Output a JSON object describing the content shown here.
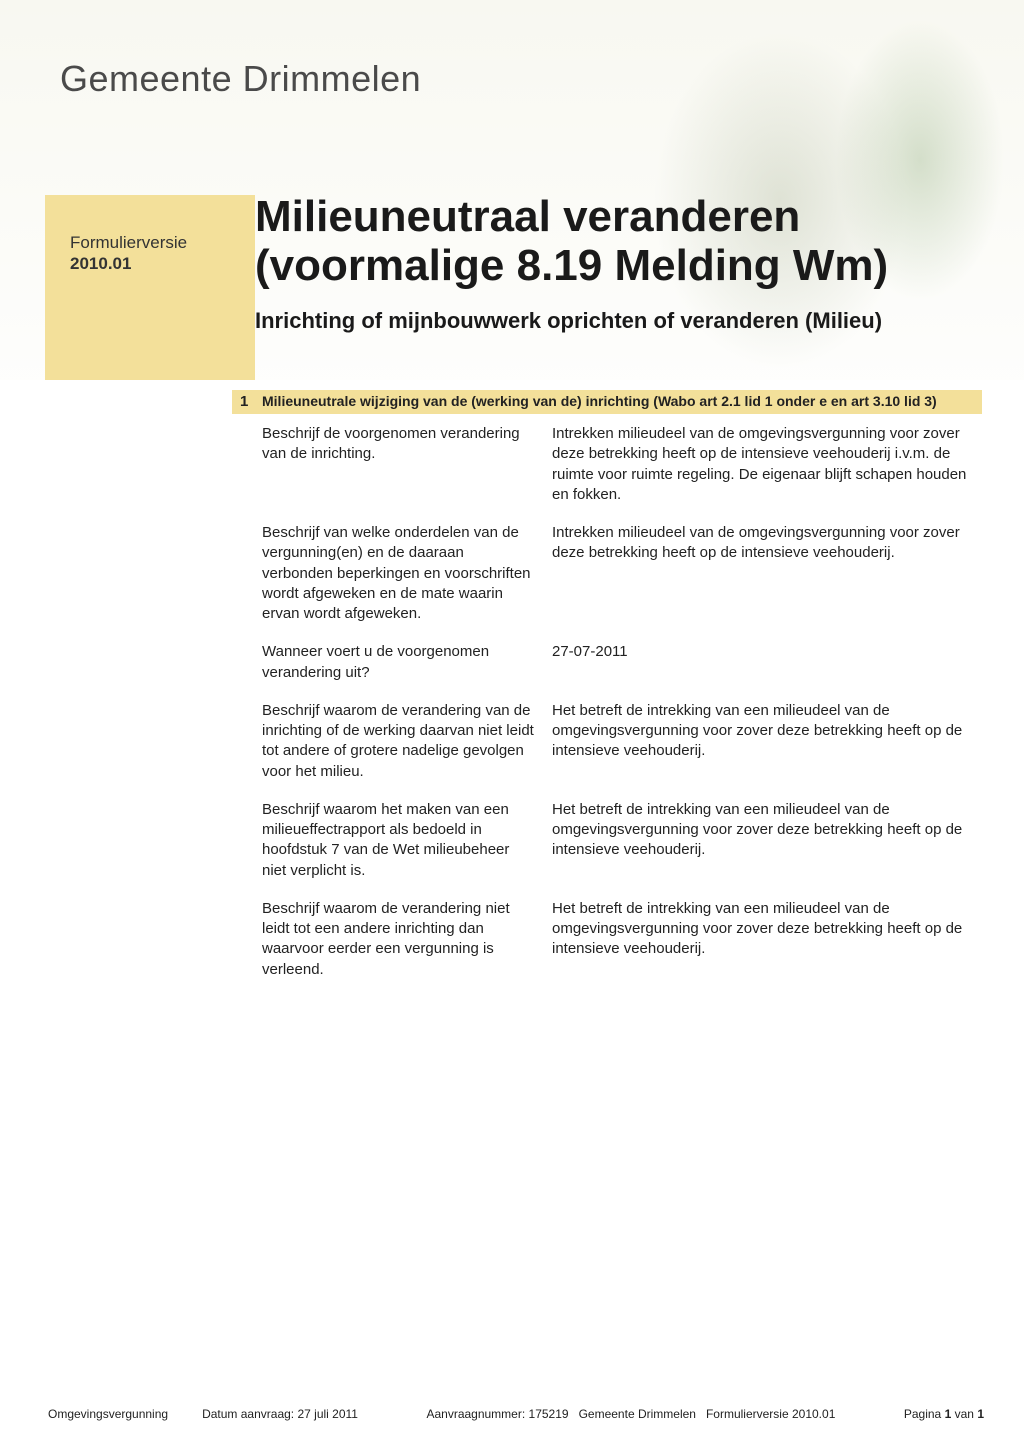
{
  "colors": {
    "accent_yellow": "#f3e09a",
    "text_primary": "#1a1a1a",
    "text_body": "#222222",
    "org_gray": "#4a4a4a",
    "background": "#ffffff"
  },
  "typography": {
    "org_name_fontsize": 36,
    "org_name_weight": 300,
    "main_title_fontsize": 44,
    "main_title_weight": "bold",
    "subtitle_fontsize": 22,
    "subtitle_weight": "bold",
    "body_fontsize": 15,
    "section_title_fontsize": 14,
    "footer_fontsize": 12
  },
  "header": {
    "org_name": "Gemeente Drimmelen"
  },
  "sidebar": {
    "label_line1": "Formulierversie",
    "label_line2": "2010.01"
  },
  "title": {
    "main": "Milieuneutraal veranderen (voormalige 8.19 Melding Wm)",
    "sub": "Inrichting of mijnbouwwerk oprichten of veranderen (Milieu)"
  },
  "section": {
    "number": "1",
    "title": "Milieuneutrale wijziging van de (werking van de) inrichting (Wabo art 2.1 lid 1 onder e en art 3.10 lid 3)"
  },
  "qa": [
    {
      "q": "Beschrijf de voorgenomen verandering van de inrichting.",
      "a": "Intrekken milieudeel van de omgevingsvergunning voor zover deze betrekking heeft op de intensieve veehouderij i.v.m. de ruimte voor ruimte regeling. De eigenaar blijft schapen houden en fokken."
    },
    {
      "q": "Beschrijf van welke onderdelen van de vergunning(en) en de daaraan verbonden beperkingen en voorschriften wordt afgeweken en de mate waarin ervan wordt afgeweken.",
      "a": "Intrekken milieudeel van de omgevingsvergunning voor zover deze betrekking heeft op de intensieve veehouderij."
    },
    {
      "q": "Wanneer voert u de voorgenomen verandering uit?",
      "a": "27-07-2011"
    },
    {
      "q": "Beschrijf waarom de verandering van de inrichting of de werking daarvan niet leidt tot andere of grotere nadelige gevolgen voor het milieu.",
      "a": "Het betreft de intrekking van een milieudeel van de omgevingsvergunning voor zover deze betrekking heeft op de intensieve veehouderij."
    },
    {
      "q": "Beschrijf waarom het maken van een milieueffectrapport als bedoeld in hoofdstuk 7 van de Wet milieubeheer niet verplicht is.",
      "a": "Het betreft de intrekking van een milieudeel van de omgevingsvergunning voor zover deze betrekking heeft op de intensieve veehouderij."
    },
    {
      "q": "Beschrijf waarom de verandering niet leidt tot een andere inrichting dan waarvoor eerder een vergunning is verleend.",
      "a": "Het betreft de intrekking van een milieudeel van de omgevingsvergunning voor zover deze betrekking heeft op de intensieve veehouderij."
    }
  ],
  "footer": {
    "doc_type": "Omgevingsvergunning",
    "date_label": "Datum aanvraag:",
    "date_value": "27 juli 2011",
    "request_label": "Aanvraagnummer:",
    "request_value": "175219",
    "municipality": "Gemeente Drimmelen",
    "form_version_label": "Formulierversie",
    "form_version_value": "2010.01",
    "page_label_pre": "Pagina",
    "page_current": "1",
    "page_of": "van",
    "page_total": "1"
  }
}
